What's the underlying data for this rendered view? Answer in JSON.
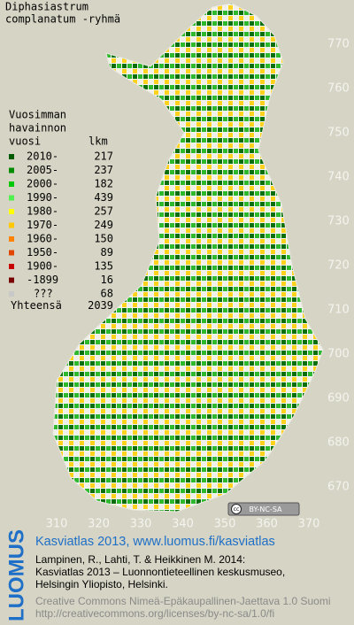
{
  "title": [
    "Diphasiastrum",
    "complanatum -ryhmä"
  ],
  "legend": {
    "heading": [
      "Vuosimman",
      "havainnon",
      "vuosi"
    ],
    "count_heading": "lkm",
    "rows": [
      {
        "label": "2010-",
        "count": 217,
        "color": "#005a00"
      },
      {
        "label": "2005-",
        "count": 237,
        "color": "#008c00"
      },
      {
        "label": "2000-",
        "count": 182,
        "color": "#00c800"
      },
      {
        "label": "1990-",
        "count": 439,
        "color": "#50f050"
      },
      {
        "label": "1980-",
        "count": 257,
        "color": "#ffff00"
      },
      {
        "label": "1970-",
        "count": 249,
        "color": "#ffc800"
      },
      {
        "label": "1960-",
        "count": 150,
        "color": "#ff8200"
      },
      {
        "label": "1950-",
        "count": 89,
        "color": "#e04600"
      },
      {
        "label": "1900-",
        "count": 135,
        "color": "#c80000"
      },
      {
        "label": "-1899",
        "count": 16,
        "color": "#7a0000"
      },
      {
        "label": "???",
        "count": 68,
        "color": "#c8c8c8"
      }
    ],
    "total_label": "Yhteensä",
    "total": 2039
  },
  "y_labels": [
    770,
    760,
    750,
    740,
    730,
    720,
    710,
    700,
    690,
    680,
    670
  ],
  "x_labels": [
    310,
    320,
    330,
    340,
    350,
    360,
    370
  ],
  "license_badge": "BY-NC-SA",
  "footer": {
    "logo": "LUOMUS",
    "headline": "Kasviatlas 2013, www.luomus.fi/kasviatlas",
    "citation": [
      "Lampinen, R., Lahti, T. & Heikkinen M. 2014:",
      "Kasviatlas 2013 – Luonnontieteellinen keskusmuseo,",
      "Helsingin Yliopisto, Helsinki."
    ],
    "license": [
      "Creative Commons Nimeä-Epäkaupallinen-Jaettava 1.0 Suomi",
      "http://creativecommons.org/licenses/by-nc-sa/1.0/fi"
    ]
  }
}
